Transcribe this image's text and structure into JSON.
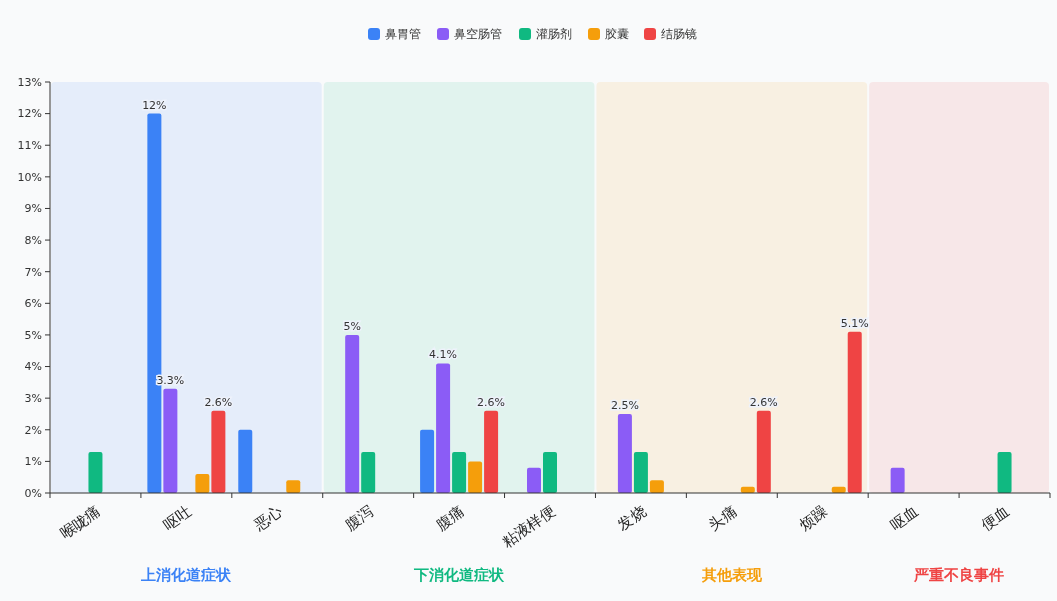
{
  "chart_data": {
    "type": "bar",
    "categories": [
      "喉咙痛",
      "呕吐",
      "恶心",
      "腹泻",
      "腹痛",
      "粘液样便",
      "发烧",
      "头痛",
      "烦躁",
      "呕血",
      "便血"
    ],
    "series": [
      {
        "name": "鼻胃管",
        "color": "#3b82f6",
        "values": [
          null,
          12,
          2,
          null,
          2,
          null,
          null,
          null,
          null,
          null,
          null
        ],
        "value_labels": [
          null,
          "12%",
          null,
          null,
          null,
          null,
          null,
          null,
          null,
          null,
          null
        ]
      },
      {
        "name": "鼻空肠管",
        "color": "#8b5cf6",
        "values": [
          null,
          3.3,
          null,
          5,
          4.1,
          0.8,
          2.5,
          null,
          null,
          0.8,
          null
        ],
        "value_labels": [
          null,
          "3.3%",
          null,
          "5%",
          "4.1%",
          null,
          "2.5%",
          null,
          null,
          null,
          null
        ]
      },
      {
        "name": "灌肠剂",
        "color": "#10b981",
        "values": [
          1.3,
          null,
          null,
          1.3,
          1.3,
          1.3,
          1.3,
          null,
          null,
          null,
          1.3
        ]
      },
      {
        "name": "胶囊",
        "color": "#f59e0b",
        "values": [
          null,
          0.6,
          0.4,
          null,
          1,
          null,
          0.4,
          0.2,
          0.2,
          null,
          null
        ]
      },
      {
        "name": "结肠镜",
        "color": "#ef4444",
        "values": [
          null,
          2.6,
          null,
          null,
          2.6,
          null,
          null,
          2.6,
          5.1,
          null,
          null
        ],
        "value_labels": [
          null,
          "2.6%",
          null,
          null,
          "2.6%",
          null,
          null,
          "2.6%",
          "5.1%",
          null,
          null
        ]
      }
    ],
    "ylim": [
      0,
      13
    ],
    "yticks": [
      {
        "value": 0,
        "label": "0%"
      },
      {
        "value": 1,
        "label": "1%"
      },
      {
        "value": 2,
        "label": "2%"
      },
      {
        "value": 3,
        "label": "3%"
      },
      {
        "value": 4,
        "label": "4%"
      },
      {
        "value": 5,
        "label": "5%"
      },
      {
        "value": 6,
        "label": "6%"
      },
      {
        "value": 7,
        "label": "7%"
      },
      {
        "value": 8,
        "label": "8%"
      },
      {
        "value": 9,
        "label": "9%"
      },
      {
        "value": 10,
        "label": "10%"
      },
      {
        "value": 11,
        "label": "11%"
      },
      {
        "value": 12,
        "label": "12%"
      },
      {
        "value": 13,
        "label": "13%"
      }
    ],
    "bands": [
      {
        "axis": "x",
        "from": "喉咙痛",
        "to": "恶心",
        "label": "上消化道症状",
        "color": "#3b82f6"
      },
      {
        "axis": "x",
        "from": "腹泻",
        "to": "粘液样便",
        "label": "下消化道症状",
        "color": "#10b981"
      },
      {
        "axis": "x",
        "from": "发烧",
        "to": "烦躁",
        "label": "其他表现",
        "color": "#f59e0b"
      },
      {
        "axis": "x",
        "from": "呕血",
        "to": "便血",
        "label": "严重不良事件",
        "color": "#ef4444"
      }
    ],
    "legend": "top",
    "grid": false
  }
}
